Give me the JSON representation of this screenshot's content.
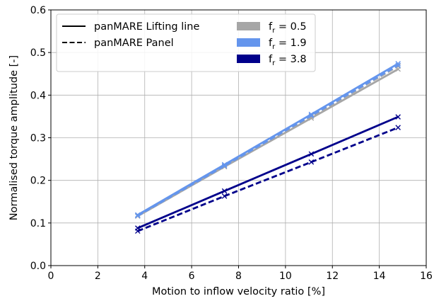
{
  "chart_data": {
    "type": "line",
    "title": "",
    "xlabel": "Motion to inflow velocity ratio [%]",
    "ylabel": "Normalised torque amplitude [-]",
    "xlim": [
      0,
      16
    ],
    "ylim": [
      0.0,
      0.6
    ],
    "xticks": [
      0,
      2,
      4,
      6,
      8,
      10,
      12,
      14,
      16
    ],
    "yticks": [
      0.0,
      0.1,
      0.2,
      0.3,
      0.4,
      0.5,
      0.6
    ],
    "xtick_labels": [
      "0",
      "2",
      "4",
      "6",
      "8",
      "10",
      "12",
      "14",
      "16"
    ],
    "ytick_labels": [
      "0.0",
      "0.1",
      "0.2",
      "0.3",
      "0.4",
      "0.5",
      "0.6"
    ],
    "grid": true,
    "legend_position": "top-left",
    "x": [
      3.7,
      7.4,
      11.1,
      14.8
    ],
    "series": [
      {
        "method": "lifting",
        "fr": "0.5",
        "color": "#a6a6a6",
        "values": [
          0.116,
          0.232,
          0.346,
          0.461
        ]
      },
      {
        "method": "panel",
        "fr": "0.5",
        "color": "#a6a6a6",
        "values": [
          0.117,
          0.234,
          0.35,
          0.468
        ]
      },
      {
        "method": "lifting",
        "fr": "1.9",
        "color": "#6495ed",
        "values": [
          0.119,
          0.237,
          0.355,
          0.474
        ]
      },
      {
        "method": "panel",
        "fr": "1.9",
        "color": "#6495ed",
        "values": [
          0.117,
          0.234,
          0.352,
          0.47
        ]
      },
      {
        "method": "lifting",
        "fr": "3.8",
        "color": "#00008b",
        "values": [
          0.088,
          0.175,
          0.262,
          0.349
        ]
      },
      {
        "method": "panel",
        "fr": "3.8",
        "color": "#00008b",
        "values": [
          0.081,
          0.163,
          0.243,
          0.324
        ]
      }
    ],
    "legend": {
      "methods": [
        {
          "label": "panMARE Lifting line",
          "style": "solid"
        },
        {
          "label": "panMARE Panel",
          "style": "dashed"
        }
      ],
      "frequencies": [
        {
          "symbol": "f",
          "subscript": "r",
          "value": " = 0.5",
          "color": "#a6a6a6"
        },
        {
          "symbol": "f",
          "subscript": "r",
          "value": " = 1.9",
          "color": "#6495ed"
        },
        {
          "symbol": "f",
          "subscript": "r",
          "value": " = 3.8",
          "color": "#00008b"
        }
      ]
    }
  }
}
